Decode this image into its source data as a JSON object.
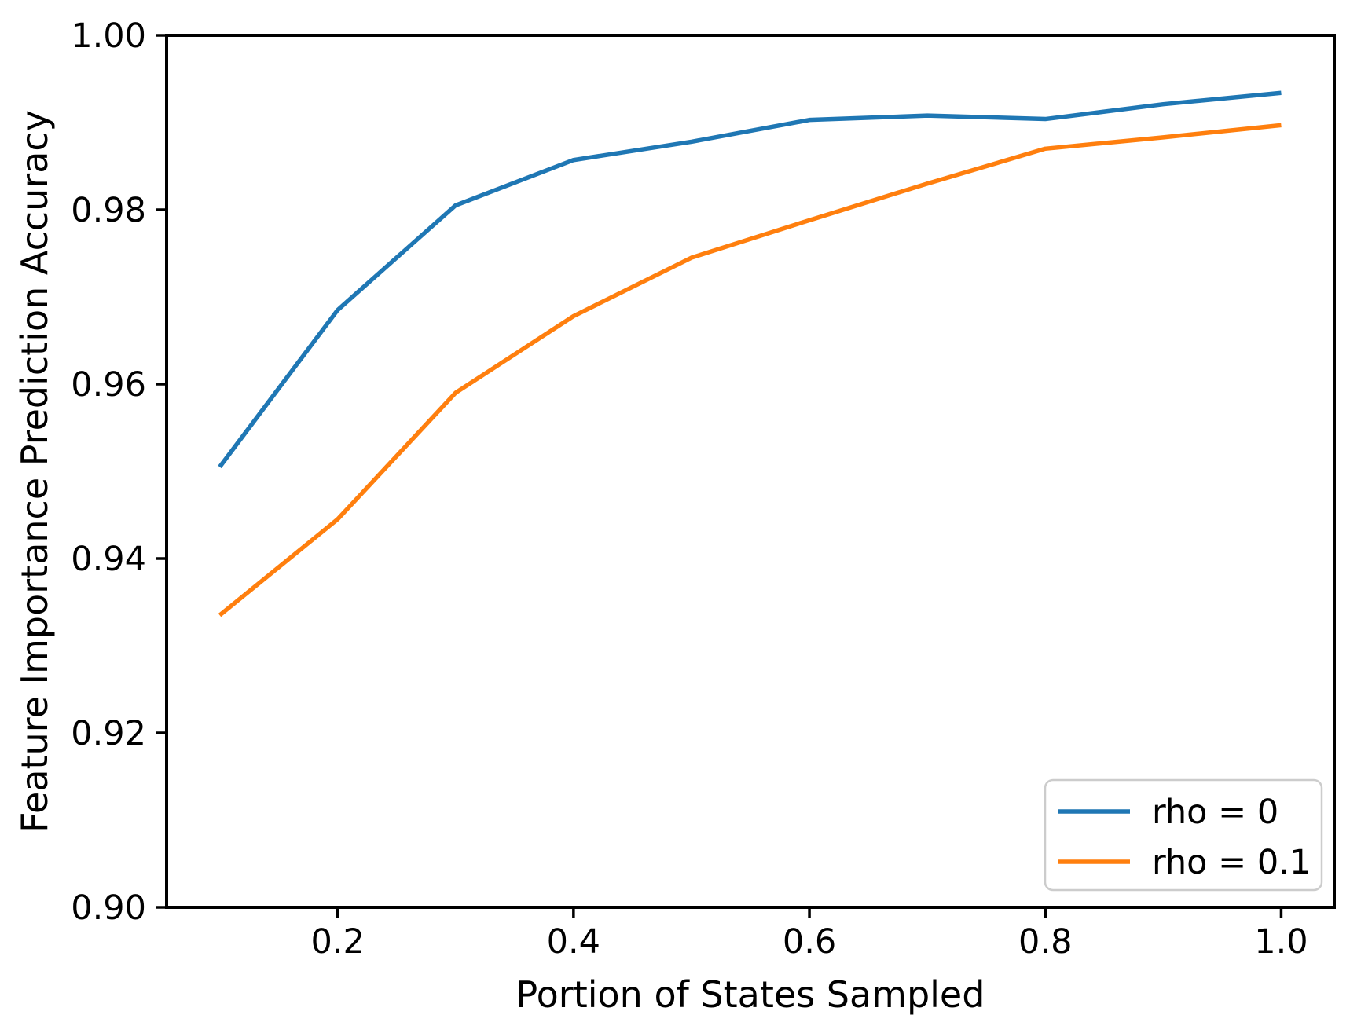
{
  "chart_data": {
    "type": "line",
    "title": "",
    "xlabel": "Portion of States Sampled",
    "ylabel": "Feature Importance Prediction Accuracy",
    "x": [
      0.1,
      0.2,
      0.3,
      0.4,
      0.5,
      0.6,
      0.7,
      0.8,
      0.9,
      1.0
    ],
    "series": [
      {
        "name": "rho = 0",
        "color": "#1f77b4",
        "values": [
          0.9505,
          0.9685,
          0.9805,
          0.9857,
          0.9878,
          0.9903,
          0.9908,
          0.9904,
          0.9921,
          0.9934
        ]
      },
      {
        "name": "rho = 0.1",
        "color": "#ff7f0e",
        "values": [
          0.9335,
          0.9445,
          0.959,
          0.9678,
          0.9745,
          0.9788,
          0.983,
          0.987,
          0.9883,
          0.9897
        ]
      }
    ],
    "xlim": [
      0.055,
      1.045
    ],
    "ylim": [
      0.9,
      1.0
    ],
    "xticks": [
      0.2,
      0.4,
      0.6,
      0.8,
      1.0
    ],
    "yticks": [
      0.9,
      0.92,
      0.94,
      0.96,
      0.98,
      1.0
    ],
    "xtick_labels": [
      "0.2",
      "0.4",
      "0.6",
      "0.8",
      "1.0"
    ],
    "ytick_labels": [
      "0.90",
      "0.92",
      "0.94",
      "0.96",
      "0.98",
      "1.00"
    ],
    "grid": false,
    "background": "#ffffff",
    "spine_color": "#000000",
    "legend": {
      "position": "lower right",
      "entries": [
        "rho = 0",
        "rho = 0.1"
      ]
    }
  }
}
